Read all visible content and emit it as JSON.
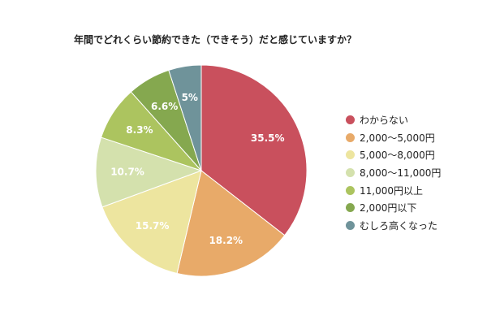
{
  "chart_data": {
    "type": "pie",
    "title": "年間でどれくらい節約できた（できそう）だと感じていますか？",
    "legend_position": "right",
    "slices": [
      {
        "label": "わからない",
        "value": 35.5,
        "display": "35.5%",
        "color": "#c9505d"
      },
      {
        "label": "2,000〜5,000円",
        "value": 18.2,
        "display": "18.2%",
        "color": "#e8aa69"
      },
      {
        "label": "5,000〜8,000円",
        "value": 15.7,
        "display": "15.7%",
        "color": "#ede59f"
      },
      {
        "label": "8,000〜11,000円",
        "value": 10.7,
        "display": "10.7%",
        "color": "#d4e1ad"
      },
      {
        "label": "11,000円以上",
        "value": 8.3,
        "display": "8.3%",
        "color": "#acc45f"
      },
      {
        "label": "2,000円以下",
        "value": 6.6,
        "display": "6.6%",
        "color": "#85a84f"
      },
      {
        "label": "むしろ高くなった",
        "value": 5,
        "display": "5%",
        "color": "#6f939a"
      }
    ]
  }
}
